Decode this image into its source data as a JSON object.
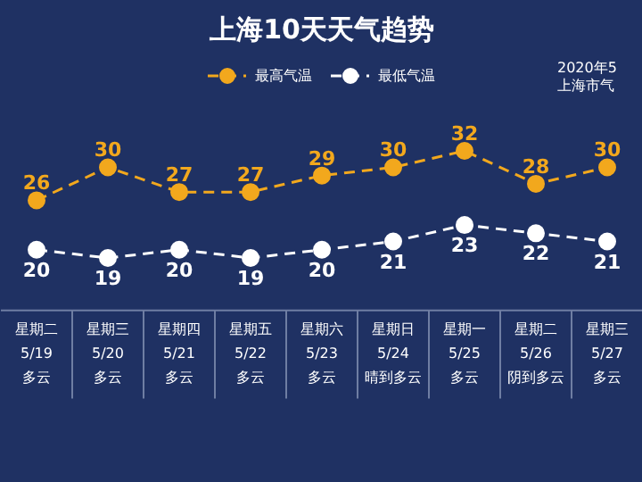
{
  "chart_data": {
    "type": "line",
    "title": "上海10天天气趋势",
    "categories": [
      "星期二\n5/19\n多云",
      "星期三\n5/20\n多云",
      "星期四\n5/21\n多云",
      "星期五\n5/22\n多云",
      "星期六\n5/23\n多云",
      "星期日\n5/24\n晴到多云",
      "星期一\n5/25\n多云",
      "星期二\n5/26\n阴到多云",
      "星期三\n5/27\n多云"
    ],
    "series": [
      {
        "name": "最高气温",
        "color": "#f2a81d",
        "values": [
          26,
          30,
          27,
          27,
          29,
          30,
          32,
          28,
          30
        ]
      },
      {
        "name": "最低气温",
        "color": "#ffffff",
        "values": [
          20,
          19,
          20,
          19,
          20,
          21,
          23,
          22,
          21
        ]
      }
    ],
    "annotations": [
      "2020年5",
      "上海市气"
    ],
    "data_labels": true,
    "legend": "top",
    "marker": "circle",
    "line_style": "dashed",
    "grid": false
  }
}
